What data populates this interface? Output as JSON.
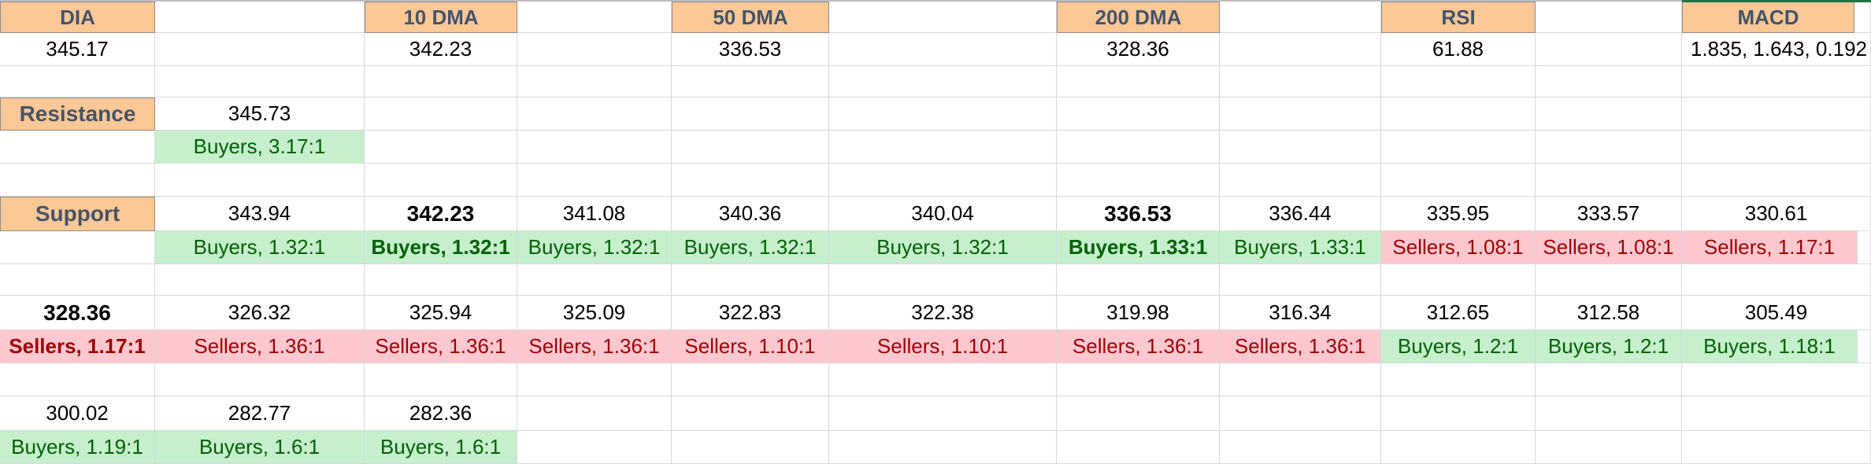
{
  "headers": {
    "dia": "DIA",
    "dma10": "10 DMA",
    "dma50": "50 DMA",
    "dma200": "200 DMA",
    "rsi": "RSI",
    "macd": "MACD"
  },
  "current": {
    "dia": "345.17",
    "dma10": "342.23",
    "dma50": "336.53",
    "dma200": "328.36",
    "rsi": "61.88",
    "macd": "1.835, 1.643, 0.192"
  },
  "resistance": {
    "label": "Resistance",
    "level": "345.73",
    "ratio": "Buyers, 3.17:1"
  },
  "support": {
    "label": "Support",
    "row1_levels": [
      "343.94",
      "342.23",
      "341.08",
      "340.36",
      "340.04",
      "336.53",
      "336.44",
      "335.95",
      "333.57",
      "330.61"
    ],
    "row1_ratios": [
      "Buyers, 1.32:1",
      "Buyers, 1.32:1",
      "Buyers, 1.32:1",
      "Buyers, 1.32:1",
      "Buyers, 1.32:1",
      "Buyers, 1.33:1",
      "Buyers, 1.33:1",
      "Sellers, 1.08:1",
      "Sellers, 1.08:1",
      "Sellers, 1.17:1"
    ],
    "row2_levels": [
      "328.36",
      "326.32",
      "325.94",
      "325.09",
      "322.83",
      "322.38",
      "319.98",
      "316.34",
      "312.65",
      "312.58",
      "305.49"
    ],
    "row2_ratios": [
      "Sellers, 1.17:1",
      "Sellers, 1.36:1",
      "Sellers, 1.36:1",
      "Sellers, 1.36:1",
      "Sellers, 1.10:1",
      "Sellers, 1.10:1",
      "Sellers, 1.36:1",
      "Sellers, 1.36:1",
      "Buyers, 1.2:1",
      "Buyers, 1.2:1",
      "Buyers, 1.18:1"
    ],
    "row3_levels": [
      "300.02",
      "282.77",
      "282.36"
    ],
    "row3_ratios": [
      "Buyers, 1.19:1",
      "Buyers, 1.6:1",
      "Buyers, 1.6:1"
    ]
  },
  "colors": {
    "header_fill": "#fcc896",
    "header_text": "#44546a",
    "buyers_fill": "#c6efce",
    "buyers_text": "#006100",
    "sellers_fill": "#ffc7ce",
    "sellers_text": "#9c0006"
  }
}
